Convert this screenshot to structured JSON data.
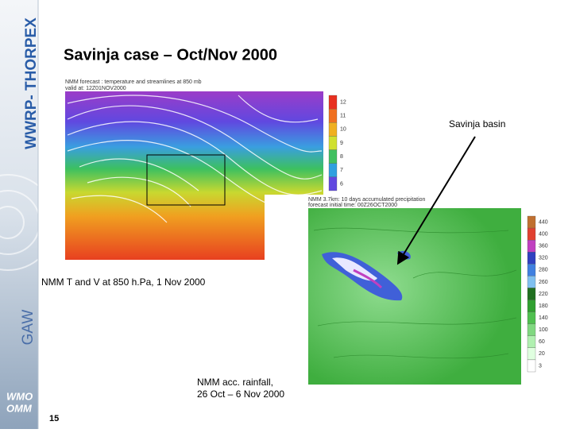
{
  "sidebar": {
    "program": "WWRP- THORPEX",
    "gaw": "GAW",
    "logo": [
      "WMO",
      "OMM"
    ]
  },
  "title": "Savinja case – Oct/Nov 2000",
  "page_number": "15",
  "figures": [
    {
      "header": [
        "NMM forecast : temperature and streamlines at 850 mb",
        "valid at: 12Z01NOV2000"
      ],
      "colorbar": [
        12,
        11,
        10,
        9,
        8,
        7,
        6
      ],
      "caption": [
        "NMM T and V at 850 h.Pa, 1 Nov 2000"
      ]
    },
    {
      "header": [
        "NMM 3.7km: 10 days accumulated precipitation",
        "forecast initial time: 00Z26OCT2000"
      ],
      "colorbar": [
        440,
        400,
        360,
        320,
        280,
        260,
        220,
        180,
        140,
        100,
        60,
        20,
        3
      ],
      "caption": [
        "NMM acc. rainfall,",
        "26 Oct – 6 Nov 2000"
      ]
    }
  ],
  "annotation": "Savinja basin"
}
